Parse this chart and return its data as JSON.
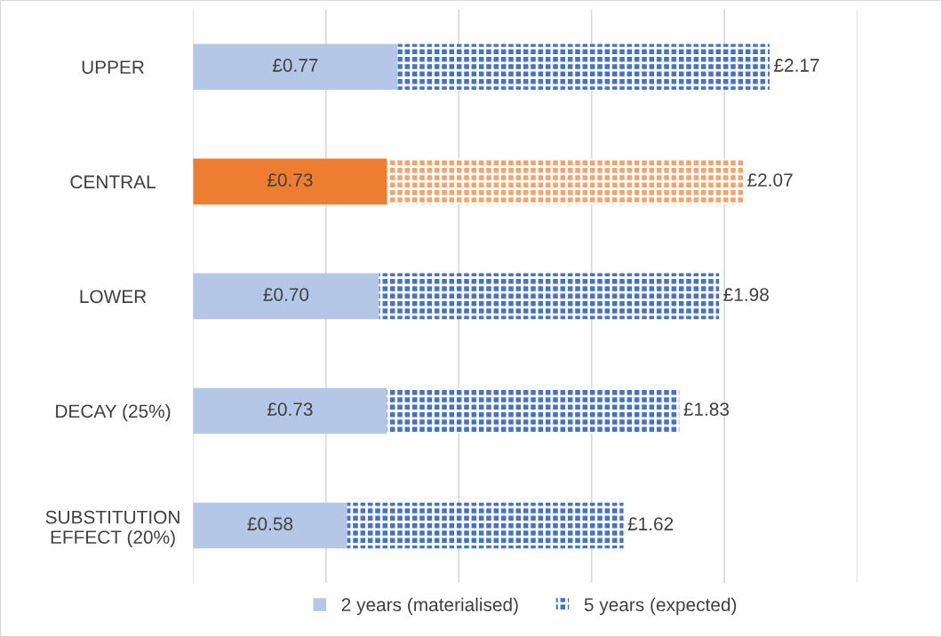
{
  "chart_data": {
    "type": "bar",
    "orientation": "horizontal",
    "stacked": true,
    "categories": [
      "UPPER",
      "CENTRAL",
      "LOWER",
      "DECAY (25%)",
      "SUBSTITUTION\nEFFECT (20%)"
    ],
    "series": [
      {
        "name": "2 years (materialised)",
        "color": "#b4c7e7",
        "colors": [
          "#b4c7e7",
          "#ed7d31",
          "#b4c7e7",
          "#b4c7e7",
          "#b4c7e7"
        ],
        "values": [
          0.77,
          0.73,
          0.7,
          0.73,
          0.58
        ],
        "value_labels": [
          "£0.77",
          "£0.73",
          "£0.70",
          "£0.73",
          "£0.58"
        ]
      },
      {
        "name": "5 years (expected)",
        "color": "#4472c4",
        "colors": [
          "#4472c4",
          "#f4a36a",
          "#4472c4",
          "#4472c4",
          "#4472c4"
        ],
        "values": [
          1.4,
          1.34,
          1.28,
          1.1,
          1.04
        ]
      }
    ],
    "totals": [
      "£2.17",
      "£2.07",
      "£1.98",
      "£1.83",
      "£1.62"
    ],
    "xlim": [
      0,
      2.5
    ],
    "xticks": [
      {
        "value": 0,
        "label": null
      },
      {
        "value": 0.5,
        "label": null
      },
      {
        "value": 1,
        "label": null
      },
      {
        "value": 1.5,
        "label": null
      },
      {
        "value": 2,
        "label": null
      },
      {
        "value": 2.5,
        "label": null
      }
    ],
    "tick_labels": "y",
    "grid": "x",
    "legend": "bottom"
  }
}
